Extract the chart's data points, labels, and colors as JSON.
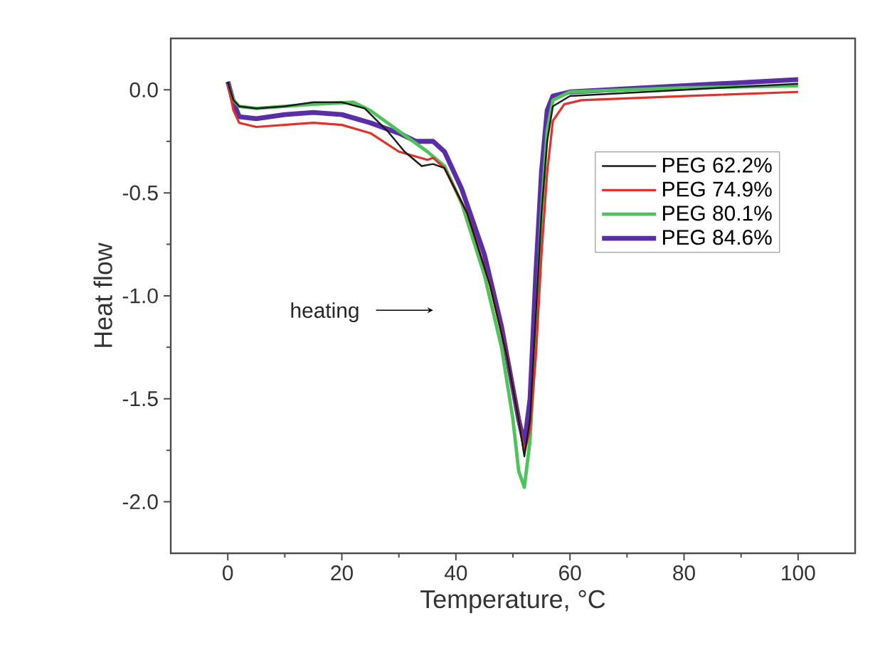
{
  "chart_data": {
    "type": "line",
    "xlabel": "Temperature, °C",
    "ylabel": "Heat flow",
    "xlim": [
      -10,
      110
    ],
    "xticks": [
      0,
      20,
      40,
      60,
      80,
      100
    ],
    "ylim": [
      -2.25,
      0.25
    ],
    "yticks": [
      {
        "value": 0,
        "label": "0.0"
      },
      {
        "value": -0.5,
        "label": "-0.5"
      },
      {
        "value": -1,
        "label": "-1.0"
      },
      {
        "value": -1.5,
        "label": "-1.5"
      },
      {
        "value": -2,
        "label": "-2.0"
      }
    ],
    "legend": "right",
    "grid": false,
    "marker": "none",
    "line_style": "solid",
    "annotations": [
      "heating"
    ],
    "series": [
      {
        "name": "PEG 62.2%",
        "color": "#1a1a1a",
        "x": [
          0,
          1,
          2,
          5,
          10,
          15,
          20,
          24,
          28,
          31,
          34,
          36,
          38,
          42,
          46,
          49,
          51,
          52,
          53,
          54,
          55,
          56,
          57,
          60,
          80,
          100
        ],
        "values": [
          0.04,
          -0.05,
          -0.08,
          -0.09,
          -0.08,
          -0.06,
          -0.06,
          -0.09,
          -0.2,
          -0.3,
          -0.37,
          -0.36,
          -0.38,
          -0.6,
          -0.95,
          -1.3,
          -1.6,
          -1.78,
          -1.6,
          -1.1,
          -0.6,
          -0.25,
          -0.08,
          -0.03,
          0.0,
          0.03
        ]
      },
      {
        "name": "PEG 74.9%",
        "color": "#e0312a",
        "x": [
          0,
          1,
          2,
          5,
          10,
          15,
          20,
          25,
          30,
          35,
          36,
          38,
          42,
          46,
          49,
          51,
          52,
          53,
          54,
          55,
          56,
          57,
          59,
          62,
          80,
          100
        ],
        "values": [
          0.03,
          -0.1,
          -0.16,
          -0.18,
          -0.17,
          -0.16,
          -0.17,
          -0.21,
          -0.3,
          -0.34,
          -0.33,
          -0.38,
          -0.6,
          -0.95,
          -1.3,
          -1.6,
          -1.76,
          -1.65,
          -1.3,
          -0.8,
          -0.4,
          -0.15,
          -0.07,
          -0.05,
          -0.03,
          -0.01
        ]
      },
      {
        "name": "PEG 80.1%",
        "color": "#4dc45a",
        "x": [
          0,
          1,
          2,
          5,
          10,
          15,
          22,
          25,
          30,
          35,
          38,
          41,
          45,
          48,
          50,
          51,
          52,
          53,
          54,
          55,
          56,
          57,
          60,
          80,
          100
        ],
        "values": [
          0.03,
          -0.05,
          -0.08,
          -0.09,
          -0.08,
          -0.07,
          -0.06,
          -0.1,
          -0.2,
          -0.3,
          -0.37,
          -0.55,
          -0.9,
          -1.25,
          -1.6,
          -1.85,
          -1.93,
          -1.7,
          -1.2,
          -0.6,
          -0.2,
          -0.05,
          -0.01,
          0.01,
          0.02
        ]
      },
      {
        "name": "PEG 84.6%",
        "color": "#5a2ea6",
        "x": [
          0,
          1,
          2,
          5,
          10,
          15,
          20,
          25,
          30,
          33,
          36,
          38,
          41,
          45,
          48,
          50,
          51,
          52,
          53,
          54,
          55,
          56,
          57,
          60,
          80,
          100
        ],
        "values": [
          0.04,
          -0.06,
          -0.13,
          -0.14,
          -0.12,
          -0.11,
          -0.12,
          -0.16,
          -0.21,
          -0.25,
          -0.25,
          -0.3,
          -0.48,
          -0.8,
          -1.15,
          -1.45,
          -1.6,
          -1.72,
          -1.5,
          -0.9,
          -0.4,
          -0.1,
          -0.03,
          -0.01,
          0.02,
          0.05
        ]
      }
    ]
  }
}
